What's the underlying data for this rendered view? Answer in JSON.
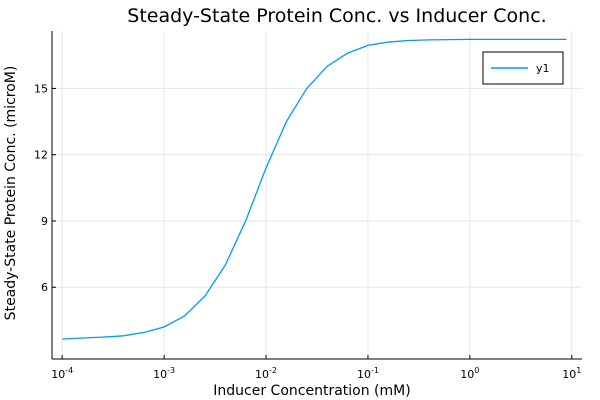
{
  "chart_data": {
    "type": "line",
    "title": "Steady-State Protein Conc. vs Inducer Conc.",
    "xlabel": "Inducer Concentration (mM)",
    "ylabel": "Steady-State Protein Conc. (microM)",
    "xscale": "log",
    "xlim": [
      7.94e-05,
      12.6
    ],
    "ylim": [
      2.75,
      17.6
    ],
    "xticks": [
      {
        "value": 0.0001,
        "base": "10",
        "exp": "-4"
      },
      {
        "value": 0.001,
        "base": "10",
        "exp": "-3"
      },
      {
        "value": 0.01,
        "base": "10",
        "exp": "-2"
      },
      {
        "value": 0.1,
        "base": "10",
        "exp": "-1"
      },
      {
        "value": 1,
        "base": "10",
        "exp": "0"
      },
      {
        "value": 10,
        "base": "10",
        "exp": "1"
      }
    ],
    "yticks": [
      {
        "value": 6,
        "label": "6"
      },
      {
        "value": 9,
        "label": "9"
      },
      {
        "value": 12,
        "label": "12"
      },
      {
        "value": 15,
        "label": "15"
      }
    ],
    "grid": true,
    "legend": {
      "position": "top-right"
    },
    "series": [
      {
        "name": "y1",
        "color": "#009AFA",
        "x": [
          0.0001,
          0.0001585,
          0.0002512,
          0.0003981,
          0.000631,
          0.001,
          0.001585,
          0.002512,
          0.003981,
          0.00631,
          0.01,
          0.01585,
          0.02512,
          0.03981,
          0.0631,
          0.1,
          0.1585,
          0.2512,
          0.3981,
          0.631,
          1,
          1.585,
          2.512,
          3.981,
          6.31,
          8.91
        ],
        "y": [
          3.65,
          3.7,
          3.74,
          3.8,
          3.95,
          4.2,
          4.7,
          5.6,
          7.0,
          9.0,
          11.4,
          13.5,
          15.0,
          16.0,
          16.6,
          16.95,
          17.1,
          17.17,
          17.2,
          17.21,
          17.22,
          17.22,
          17.22,
          17.22,
          17.22,
          17.22
        ]
      }
    ]
  }
}
